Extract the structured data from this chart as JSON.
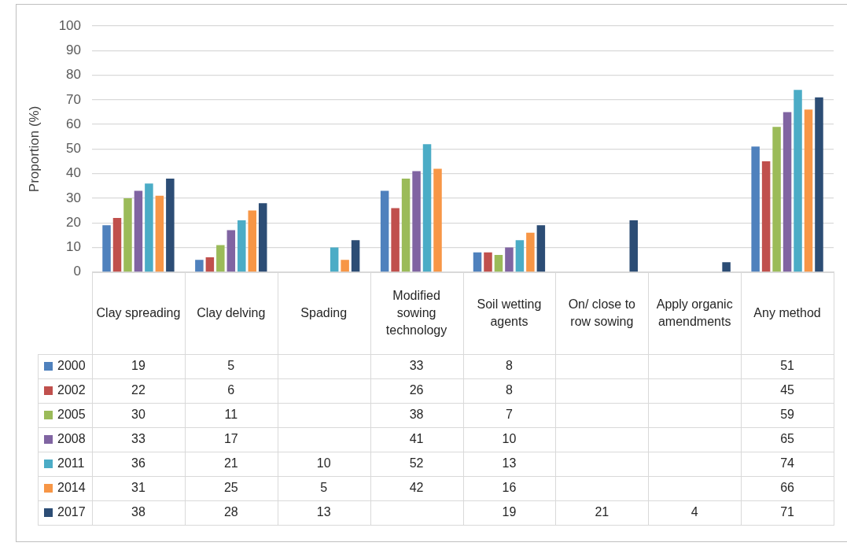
{
  "chart_data": {
    "type": "bar",
    "ylabel": "Proportion (%)",
    "categories": [
      "Clay spreading",
      "Clay delving",
      "Spading",
      "Modified sowing technology",
      "Soil wetting agents",
      "On/ close to row sowing",
      "Apply organic amendments",
      "Any method"
    ],
    "series": [
      {
        "name": "2000",
        "color": "#4f81bd",
        "values": [
          19,
          5,
          null,
          33,
          8,
          null,
          null,
          51
        ]
      },
      {
        "name": "2002",
        "color": "#c0504d",
        "values": [
          22,
          6,
          null,
          26,
          8,
          null,
          null,
          45
        ]
      },
      {
        "name": "2005",
        "color": "#9bbb59",
        "values": [
          30,
          11,
          null,
          38,
          7,
          null,
          null,
          59
        ]
      },
      {
        "name": "2008",
        "color": "#8064a2",
        "values": [
          33,
          17,
          null,
          41,
          10,
          null,
          null,
          65
        ]
      },
      {
        "name": "2011",
        "color": "#4bacc6",
        "values": [
          36,
          21,
          10,
          52,
          13,
          null,
          null,
          74
        ]
      },
      {
        "name": "2014",
        "color": "#f79646",
        "values": [
          31,
          25,
          5,
          42,
          16,
          null,
          null,
          66
        ]
      },
      {
        "name": "2017",
        "color": "#2c4d75",
        "values": [
          38,
          28,
          13,
          null,
          19,
          21,
          4,
          71
        ]
      }
    ],
    "ylim": [
      0,
      100
    ],
    "yticks": [
      0,
      10,
      20,
      30,
      40,
      50,
      60,
      70,
      80,
      90,
      100
    ],
    "grid": "y",
    "legend": "bottom left",
    "data_labels": true
  }
}
